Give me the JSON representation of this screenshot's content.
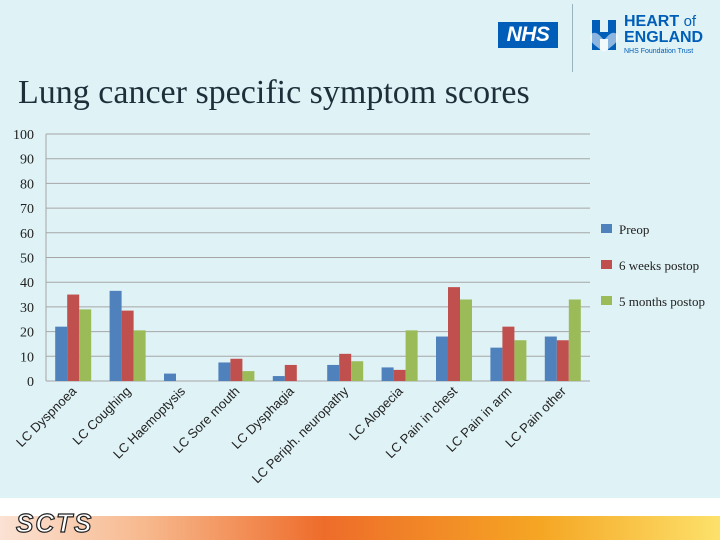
{
  "header": {
    "nhs_logo": "NHS",
    "trust_logo_line1": "HEART",
    "trust_logo_of": "of",
    "trust_logo_line2": "ENGLAND",
    "trust_logo_sub": "NHS Foundation Trust"
  },
  "slide": {
    "title": "Lung cancer specific symptom scores"
  },
  "footer": {
    "logo": "SCTS"
  },
  "colors": {
    "series": [
      "#4f81bd",
      "#c0504d",
      "#9bbb59"
    ],
    "gridline": "#a6a6a6"
  },
  "chart_data": {
    "type": "bar",
    "categories": [
      "LC Dyspnoea",
      "LC Coughing",
      "LC Haemoptysis",
      "LC Sore mouth",
      "LC Dysphagia",
      "LC Periph. neuropathy",
      "LC Alopecia",
      "LC Pain in chest",
      "LC Pain in arm",
      "LC Pain other"
    ],
    "series": [
      {
        "name": "Preop",
        "values": [
          22,
          36.5,
          3,
          7.5,
          2,
          6.5,
          5.5,
          18,
          13.5,
          18
        ]
      },
      {
        "name": "6 weeks postop",
        "values": [
          35,
          28.5,
          0,
          9,
          6.5,
          11,
          4.5,
          38,
          22,
          16.5
        ]
      },
      {
        "name": "5 months postop",
        "values": [
          29,
          20.5,
          0,
          4,
          0,
          8,
          20.5,
          33,
          16.5,
          33
        ]
      }
    ],
    "yticks": [
      0,
      10,
      20,
      30,
      40,
      50,
      60,
      70,
      80,
      90,
      100
    ],
    "ylim": [
      0,
      100
    ],
    "grid": true,
    "legend": "right"
  }
}
